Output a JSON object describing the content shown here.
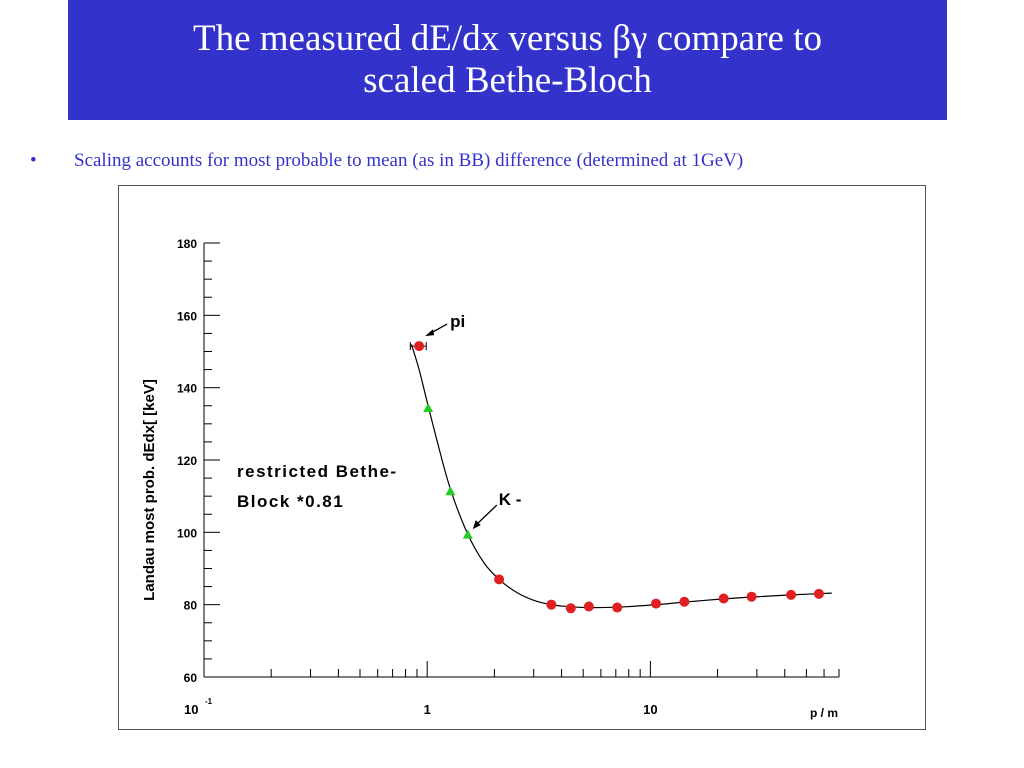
{
  "slide": {
    "title_line1": "The measured dE/dx versus βγ compare to",
    "title_line2": "scaled Bethe-Bloch",
    "bullet_marker": "•",
    "bullet_text": "Scaling accounts for most probable to mean (as in BB) difference (determined at 1GeV)",
    "colors": {
      "banner": "#3333cc",
      "bullet_text": "#3333cc",
      "pion_marker": "#e02020",
      "kaon_marker": "#22cc22"
    }
  },
  "chart_data": {
    "type": "scatter",
    "x_scale": "log",
    "xlim": [
      0.1,
      70
    ],
    "ylim": [
      60,
      180
    ],
    "y_ticks": [
      60,
      80,
      100,
      120,
      140,
      160,
      180
    ],
    "x_tick_labels": {
      "first_base": "10",
      "first_exp": "-1",
      "one": "1",
      "ten": "10"
    },
    "xlabel": "p / m",
    "ylabel": "Landau most prob. dEdx[ [keV]",
    "grid": false,
    "series": [
      {
        "name": "pi",
        "marker": "circle",
        "color": "#e02020",
        "points": [
          [
            0.92,
            151.5
          ],
          [
            2.1,
            87
          ],
          [
            3.6,
            80
          ],
          [
            4.4,
            79
          ],
          [
            5.3,
            79.5
          ],
          [
            7.1,
            79.2
          ],
          [
            10.6,
            80.3
          ],
          [
            14.2,
            80.8
          ],
          [
            21.3,
            81.7
          ],
          [
            28.4,
            82.2
          ],
          [
            42.7,
            82.7
          ],
          [
            56.9,
            83
          ]
        ]
      },
      {
        "name": "K -",
        "marker": "triangle",
        "color": "#22cc22",
        "points": [
          [
            1.01,
            134.5
          ],
          [
            1.27,
            111.5
          ],
          [
            1.52,
            99.5
          ]
        ]
      }
    ],
    "curve": {
      "name": "restricted Bethe-Block *0.81",
      "points": [
        [
          0.85,
          152
        ],
        [
          0.92,
          145
        ],
        [
          1.0,
          136
        ],
        [
          1.1,
          126
        ],
        [
          1.27,
          112
        ],
        [
          1.52,
          99.5
        ],
        [
          1.8,
          91.5
        ],
        [
          2.1,
          87
        ],
        [
          2.5,
          83.5
        ],
        [
          3.0,
          81.2
        ],
        [
          3.6,
          80
        ],
        [
          4.4,
          79.4
        ],
        [
          5.3,
          79.2
        ],
        [
          7.1,
          79.3
        ],
        [
          10.6,
          80
        ],
        [
          14.2,
          80.7
        ],
        [
          21.3,
          81.6
        ],
        [
          28.4,
          82.1
        ],
        [
          42.7,
          82.7
        ],
        [
          65,
          83.2
        ]
      ]
    },
    "pion_error_bar": {
      "x_low": 0.84,
      "x_high": 0.99,
      "y": 151.5
    },
    "annotations": {
      "pi": "pi",
      "kaon": "K -",
      "curve_line1": "restricted Bethe-",
      "curve_line2": "Block *0.81"
    }
  }
}
